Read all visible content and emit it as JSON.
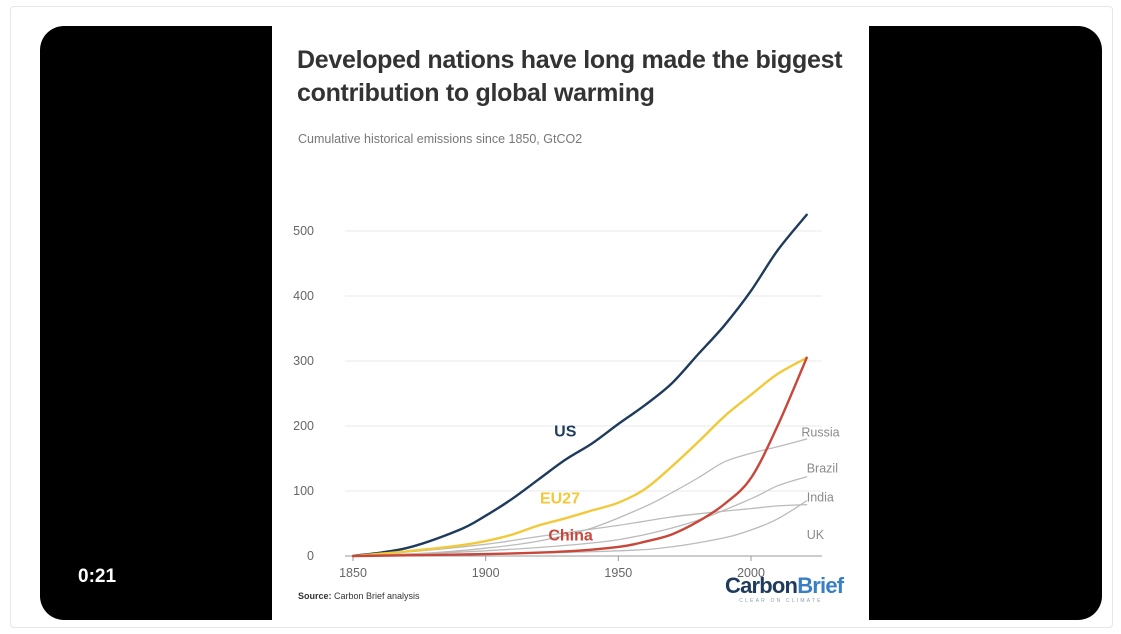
{
  "video": {
    "timestamp": "0:21"
  },
  "chart_data": {
    "type": "line",
    "title": "Developed nations have long made the biggest contribution to global warming",
    "subtitle": "Cumulative historical emissions since 1850, GtCO2",
    "xlim": [
      1850,
      2021
    ],
    "ylim": [
      0,
      540
    ],
    "x_ticks": [
      "1850",
      "1900",
      "1950",
      "2000"
    ],
    "y_ticks": [
      "0",
      "100",
      "200",
      "300",
      "400",
      "500"
    ],
    "grid": true,
    "series": [
      {
        "name": "US",
        "color": "#1f3b5c",
        "label_at": [
          1930,
          193
        ],
        "points": [
          [
            1850,
            0
          ],
          [
            1870,
            12
          ],
          [
            1890,
            40
          ],
          [
            1900,
            62
          ],
          [
            1910,
            88
          ],
          [
            1920,
            118
          ],
          [
            1930,
            148
          ],
          [
            1940,
            173
          ],
          [
            1950,
            203
          ],
          [
            1960,
            232
          ],
          [
            1970,
            265
          ],
          [
            1980,
            310
          ],
          [
            1990,
            355
          ],
          [
            2000,
            408
          ],
          [
            2010,
            470
          ],
          [
            2021,
            525
          ]
        ]
      },
      {
        "name": "EU27",
        "color": "#f2c93a",
        "label_at": [
          1928,
          90
        ],
        "points": [
          [
            1850,
            0
          ],
          [
            1870,
            7
          ],
          [
            1890,
            16
          ],
          [
            1900,
            23
          ],
          [
            1910,
            33
          ],
          [
            1920,
            47
          ],
          [
            1930,
            58
          ],
          [
            1940,
            70
          ],
          [
            1950,
            82
          ],
          [
            1960,
            103
          ],
          [
            1970,
            137
          ],
          [
            1980,
            175
          ],
          [
            1990,
            215
          ],
          [
            2000,
            248
          ],
          [
            2010,
            280
          ],
          [
            2021,
            305
          ]
        ]
      },
      {
        "name": "China",
        "color": "#c8473a",
        "label_at": [
          1932,
          33
        ],
        "points": [
          [
            1850,
            0
          ],
          [
            1900,
            3
          ],
          [
            1930,
            7
          ],
          [
            1950,
            14
          ],
          [
            1960,
            22
          ],
          [
            1970,
            33
          ],
          [
            1980,
            53
          ],
          [
            1990,
            80
          ],
          [
            2000,
            120
          ],
          [
            2010,
            200
          ],
          [
            2021,
            305
          ]
        ]
      },
      {
        "name": "Russia",
        "color": "#bbbbbb",
        "label_at": [
          2019,
          190
        ],
        "points": [
          [
            1850,
            0
          ],
          [
            1880,
            5
          ],
          [
            1900,
            12
          ],
          [
            1920,
            23
          ],
          [
            1940,
            43
          ],
          [
            1960,
            76
          ],
          [
            1970,
            97
          ],
          [
            1980,
            120
          ],
          [
            1990,
            145
          ],
          [
            2000,
            158
          ],
          [
            2010,
            168
          ],
          [
            2021,
            180
          ]
        ]
      },
      {
        "name": "Brazil",
        "color": "#bbbbbb",
        "label_at": [
          2021,
          135
        ],
        "points": [
          [
            1850,
            0
          ],
          [
            1900,
            8
          ],
          [
            1940,
            20
          ],
          [
            1960,
            33
          ],
          [
            1980,
            55
          ],
          [
            2000,
            88
          ],
          [
            2010,
            108
          ],
          [
            2021,
            122
          ]
        ]
      },
      {
        "name": "India",
        "color": "#bbbbbb",
        "label_at": [
          2021,
          90
        ],
        "points": [
          [
            1850,
            0
          ],
          [
            1900,
            3
          ],
          [
            1950,
            8
          ],
          [
            1970,
            14
          ],
          [
            1990,
            28
          ],
          [
            2000,
            40
          ],
          [
            2010,
            57
          ],
          [
            2021,
            85
          ]
        ]
      },
      {
        "name": "UK",
        "color": "#bbbbbb",
        "label_at": [
          2021,
          32
        ],
        "points": [
          [
            1850,
            0
          ],
          [
            1870,
            6
          ],
          [
            1900,
            18
          ],
          [
            1920,
            30
          ],
          [
            1950,
            47
          ],
          [
            1970,
            60
          ],
          [
            1990,
            69
          ],
          [
            2000,
            73
          ],
          [
            2010,
            77
          ],
          [
            2021,
            79
          ]
        ]
      }
    ]
  },
  "footer": {
    "source_label": "Source:",
    "source_text": " Carbon Brief analysis"
  },
  "logo": {
    "part1": "Carbon",
    "part2": "Brief",
    "tagline": "CLEAR ON CLIMATE"
  }
}
